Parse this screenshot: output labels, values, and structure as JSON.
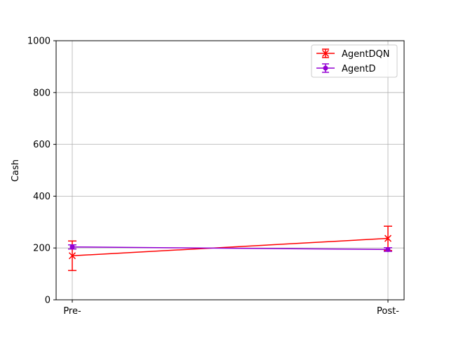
{
  "chart_data": {
    "type": "line",
    "title": "",
    "xlabel": "",
    "ylabel": "Cash",
    "categories": [
      "Pre-",
      "Post-"
    ],
    "ylim": [
      0,
      1000
    ],
    "yticks": [
      0,
      200,
      400,
      600,
      800,
      1000
    ],
    "grid": true,
    "legend_position": "top-right",
    "series": [
      {
        "name": "AgentDQN",
        "color": "#ff0000",
        "marker": "x",
        "values": [
          170,
          237
        ],
        "errors": [
          57,
          47
        ]
      },
      {
        "name": "AgentD",
        "color": "#9400d3",
        "marker": "dot",
        "values": [
          204,
          194
        ],
        "errors": [
          8,
          7
        ]
      }
    ]
  }
}
